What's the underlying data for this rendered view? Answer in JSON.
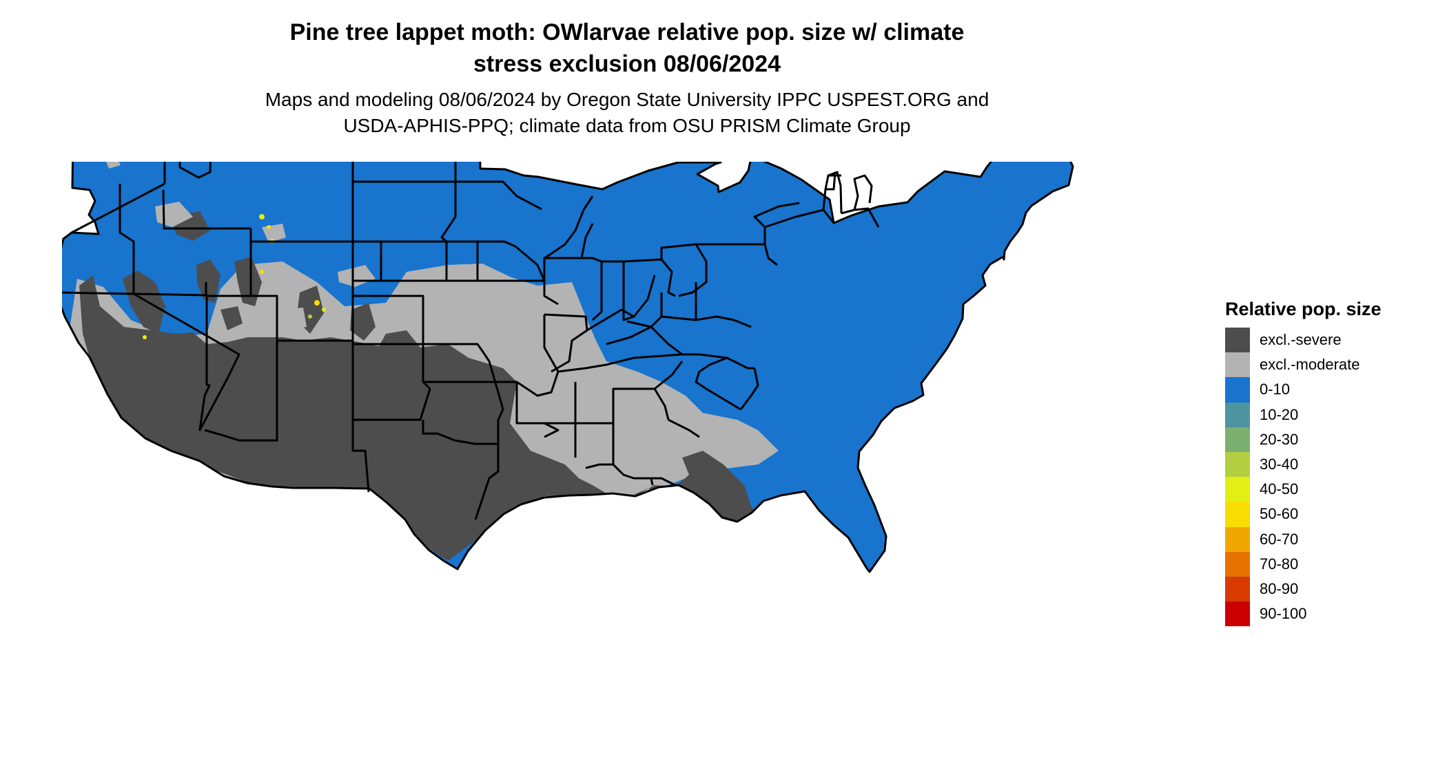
{
  "title_line1": "Pine tree lappet moth: OWlarvae relative pop. size w/ climate",
  "title_line2": "stress exclusion 08/06/2024",
  "subtitle_line1": "Maps and modeling 08/06/2024 by Oregon State University IPPC USPEST.ORG and",
  "subtitle_line2": "USDA-APHIS-PPQ; climate data from OSU PRISM Climate Group",
  "legend": {
    "title": "Relative pop. size",
    "items": [
      {
        "label": "excl.-severe",
        "color": "#4d4d4d"
      },
      {
        "label": "excl.-moderate",
        "color": "#b3b3b3"
      },
      {
        "label": "0-10",
        "color": "#1874cd"
      },
      {
        "label": "10-20",
        "color": "#4d94a0"
      },
      {
        "label": "20-30",
        "color": "#7cb070"
      },
      {
        "label": "30-40",
        "color": "#b2cf42"
      },
      {
        "label": "40-50",
        "color": "#e3ef14"
      },
      {
        "label": "50-60",
        "color": "#f8dd00"
      },
      {
        "label": "60-70",
        "color": "#f0a800"
      },
      {
        "label": "70-80",
        "color": "#e67300"
      },
      {
        "label": "80-90",
        "color": "#d83b00"
      },
      {
        "label": "90-100",
        "color": "#cc0000"
      }
    ]
  }
}
